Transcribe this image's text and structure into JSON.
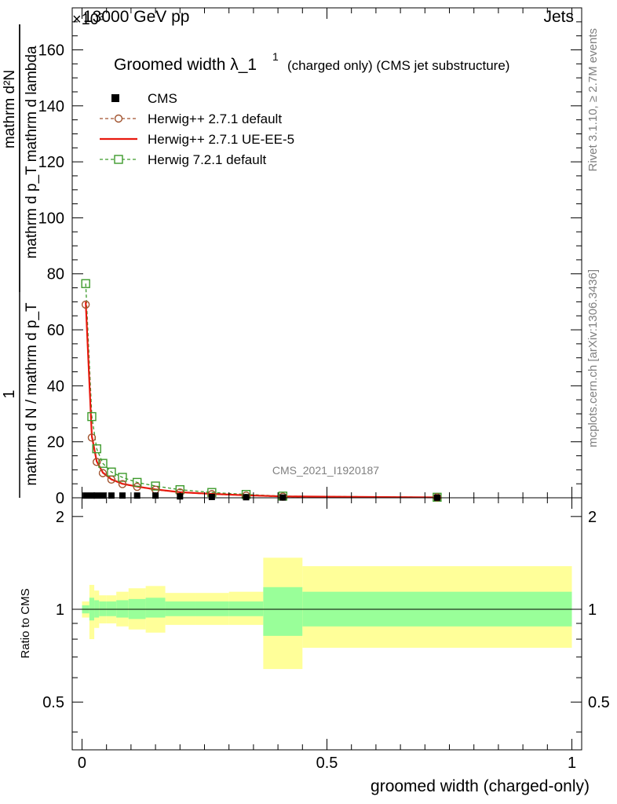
{
  "header": {
    "left": "13000 GeV pp",
    "right": "Jets",
    "exponent": "×10³"
  },
  "plot_title": {
    "main": "Groomed width λ_1",
    "superscript": "1",
    "note": "(charged only) (CMS jet substructure)"
  },
  "watermark": "CMS_2021_I1920187",
  "side_labels": {
    "rivet": "Rivet 3.1.10, ≥ 2.7M events",
    "mcplots": "mcplots.cern.ch [arXiv:1306.3436]"
  },
  "ylabel_top": {
    "numerator": "1",
    "denominator": "mathrm d N / mathrm d p_T",
    "num2": "mathrm d²N",
    "den2": "mathrm d p_T mathrm d lambda"
  },
  "ylabel_ratio": "Ratio to CMS",
  "xlabel": "groomed width (charged-only)",
  "colors": {
    "cms": "#000000",
    "herwig_default": "#a0522d",
    "herwig_ueee5": "#e8190e",
    "herwig7": "#3c9a2b",
    "band_outer": "#ffff99",
    "band_inner": "#99ff99"
  },
  "legend": [
    {
      "key": "cms",
      "label": "CMS"
    },
    {
      "key": "herwig_default",
      "label": "Herwig++ 2.7.1 default"
    },
    {
      "key": "herwig_ueee5",
      "label": "Herwig++ 2.7.1 UE-EE-5"
    },
    {
      "key": "herwig7",
      "label": "Herwig 7.2.1 default"
    }
  ],
  "chart_data": {
    "type": "line",
    "x_range": [
      -0.02,
      1.02
    ],
    "y_range_top": [
      0,
      175
    ],
    "y_range_ratio": [
      0.35,
      2.3
    ],
    "y_ticks_top": [
      "0",
      "20",
      "40",
      "60",
      "80",
      "100",
      "120",
      "140",
      "160"
    ],
    "y_ticks_ratio": [
      "0.5",
      "1",
      "2"
    ],
    "x_ticks": [
      "0",
      "0.5",
      "1"
    ],
    "bins": [
      [
        0.0,
        0.015
      ],
      [
        0.015,
        0.025
      ],
      [
        0.025,
        0.035
      ],
      [
        0.035,
        0.05
      ],
      [
        0.05,
        0.07
      ],
      [
        0.07,
        0.095
      ],
      [
        0.095,
        0.13
      ],
      [
        0.13,
        0.17
      ],
      [
        0.17,
        0.23
      ],
      [
        0.23,
        0.3
      ],
      [
        0.3,
        0.37
      ],
      [
        0.37,
        0.45
      ],
      [
        0.45,
        1.0
      ]
    ],
    "series": [
      {
        "key": "cms",
        "name": "CMS",
        "x": [
          0.0075,
          0.02,
          0.03,
          0.0425,
          0.06,
          0.0825,
          0.1125,
          0.15,
          0.2,
          0.265,
          0.335,
          0.41,
          0.725
        ],
        "y": [
          0.8,
          0.8,
          0.8,
          0.8,
          0.8,
          0.8,
          0.8,
          0.8,
          0.5,
          0.3,
          0.2,
          0.1,
          0.05
        ]
      },
      {
        "key": "herwig_default",
        "name": "Herwig++ 2.7.1 default",
        "x": [
          0.0075,
          0.02,
          0.03,
          0.0425,
          0.06,
          0.0825,
          0.1125,
          0.15,
          0.2,
          0.265,
          0.335,
          0.41,
          0.725
        ],
        "y": [
          69,
          21.5,
          12.8,
          8.8,
          6.5,
          4.9,
          3.9,
          2.9,
          1.9,
          1.3,
          0.8,
          0.4,
          0.15
        ]
      },
      {
        "key": "herwig_ueee5",
        "name": "Herwig++ 2.7.1 UE-EE-5",
        "x": [
          0.0075,
          0.02,
          0.03,
          0.0425,
          0.06,
          0.0825,
          0.1125,
          0.15,
          0.2,
          0.265,
          0.335,
          0.41,
          0.725
        ],
        "y": [
          70,
          22,
          13,
          9,
          6.6,
          5.0,
          4.0,
          3.0,
          2.0,
          1.4,
          0.9,
          0.5,
          0.15
        ]
      },
      {
        "key": "herwig7",
        "name": "Herwig 7.2.1 default",
        "x": [
          0.0075,
          0.02,
          0.03,
          0.0425,
          0.06,
          0.0825,
          0.1125,
          0.15,
          0.2,
          0.265,
          0.335,
          0.41,
          0.725
        ],
        "y": [
          76.5,
          29,
          17.5,
          12.3,
          9.2,
          7.3,
          5.5,
          4.2,
          2.9,
          1.9,
          1.2,
          0.6,
          0.2
        ]
      }
    ],
    "ratio_band": {
      "inner_lo": [
        0.97,
        0.92,
        0.94,
        0.95,
        0.95,
        0.94,
        0.93,
        0.94,
        0.95,
        0.95,
        0.95,
        0.82,
        0.88
      ],
      "inner_hi": [
        1.03,
        1.09,
        1.07,
        1.06,
        1.06,
        1.07,
        1.08,
        1.09,
        1.06,
        1.06,
        1.06,
        1.18,
        1.14
      ],
      "outer_lo": [
        0.94,
        0.8,
        0.87,
        0.9,
        0.9,
        0.88,
        0.86,
        0.84,
        0.89,
        0.89,
        0.89,
        0.64,
        0.75
      ],
      "outer_hi": [
        1.06,
        1.2,
        1.15,
        1.11,
        1.11,
        1.14,
        1.17,
        1.19,
        1.13,
        1.13,
        1.14,
        1.47,
        1.38
      ]
    }
  }
}
